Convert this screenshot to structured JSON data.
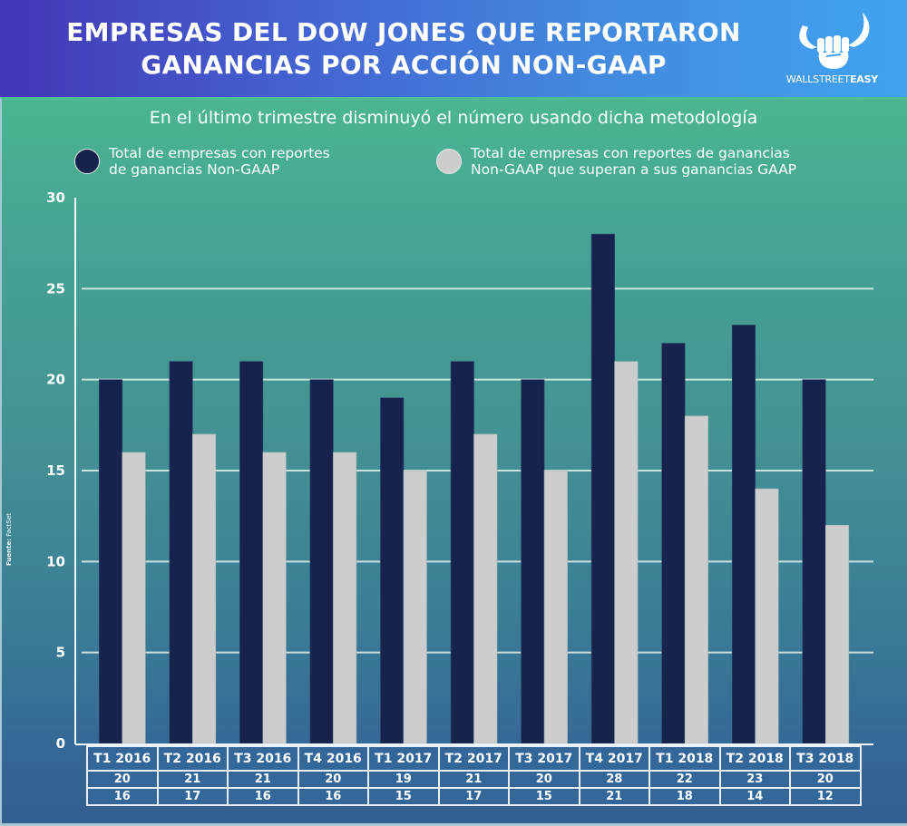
{
  "header": {
    "title_line1": "EMPRESAS DEL DOW JONES QUE REPORTARON",
    "title_line2": "GANANCIAS POR ACCIÓN NON-GAAP",
    "logo_text_light": "WALLSTREET",
    "logo_text_bold": "EASY",
    "logo_icon": "bull-fist-icon",
    "gradient_start": "#4436b6",
    "gradient_end": "#41a3f1"
  },
  "source_label": "Fuente:",
  "source_value": "FactSet",
  "chart_data": {
    "type": "bar",
    "title": "EMPRESAS DEL DOW JONES QUE REPORTARON GANANCIAS POR ACCIÓN NON-GAAP",
    "subtitle": "En el último trimestre disminuyó el número usando dicha metodología",
    "xlabel": "",
    "ylabel": "",
    "ylim": [
      0,
      30
    ],
    "yticks": [
      0,
      5,
      10,
      15,
      20,
      25,
      30
    ],
    "grid": true,
    "legend_position": "top",
    "categories": [
      "T1 2016",
      "T2 2016",
      "T3 2016",
      "T4 2016",
      "T1 2017",
      "T2 2017",
      "T3 2017",
      "T4 2017",
      "T1 2018",
      "T2 2018",
      "T3 2018"
    ],
    "series": [
      {
        "name": "Total de empresas con reportes de ganancias Non-GAAP",
        "legend_line1": "Total de empresas con reportes",
        "legend_line2": "de ganancias Non-GAAP",
        "color": "#17224d",
        "values": [
          20,
          21,
          21,
          20,
          19,
          21,
          20,
          28,
          22,
          23,
          20
        ]
      },
      {
        "name": "Total de empresas con reportes de ganancias Non-GAAP que superan a sus ganancias GAAP",
        "legend_line1": "Total de empresas con reportes de ganancias",
        "legend_line2": "Non-GAAP que superan a sus ganancias GAAP",
        "color": "#cdcdcd",
        "values": [
          16,
          17,
          16,
          16,
          15,
          17,
          15,
          21,
          18,
          14,
          12
        ]
      }
    ]
  }
}
